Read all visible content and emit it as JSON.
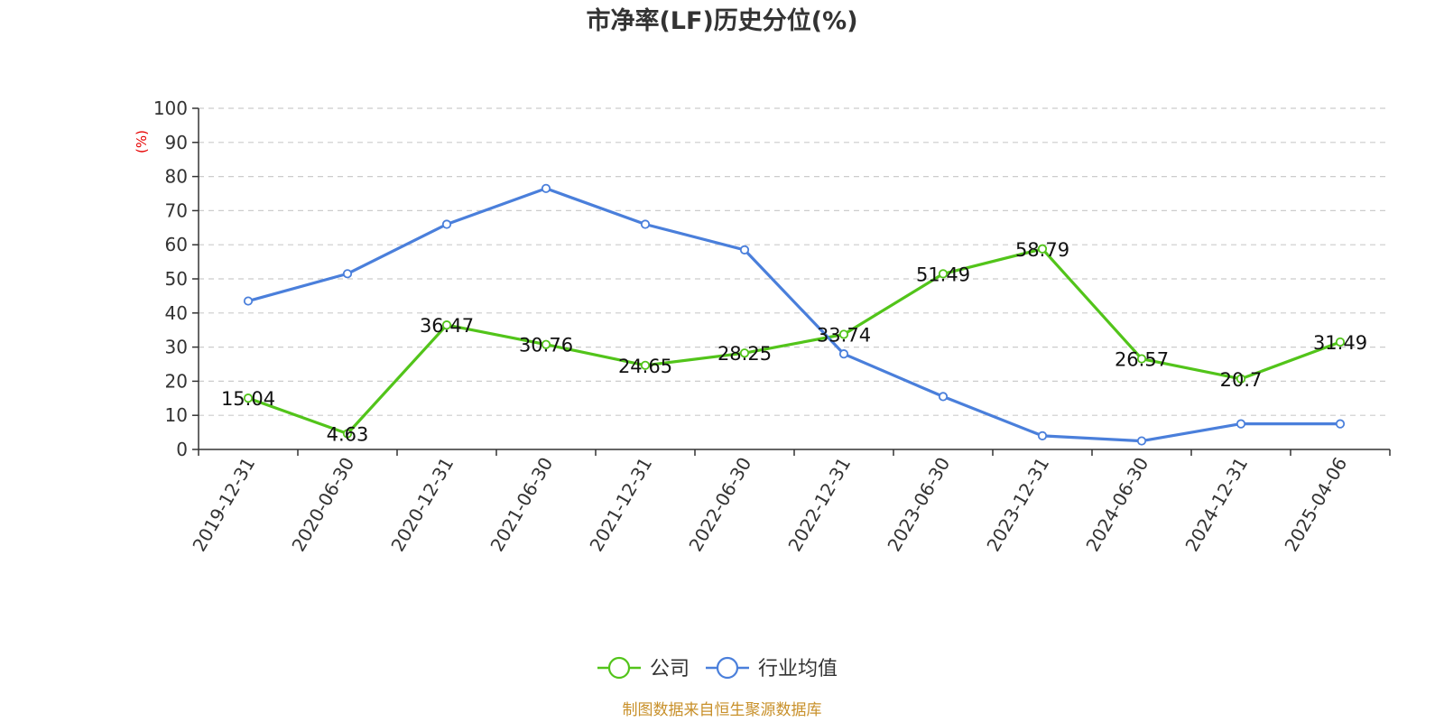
{
  "title": "市净率(LF)历史分位(%)",
  "source": "制图数据来自恒生聚源数据库",
  "chart_data": {
    "type": "line",
    "title": "市净率(LF)历史分位(%)",
    "ylabel": "(%)",
    "xlabel": "",
    "ylim": [
      0,
      100
    ],
    "yticks": [
      0,
      10,
      20,
      30,
      40,
      50,
      60,
      70,
      80,
      90,
      100
    ],
    "grid": true,
    "legend_position": "bottom",
    "categories": [
      "2019-12-31",
      "2020-06-30",
      "2020-12-31",
      "2021-06-30",
      "2021-12-31",
      "2022-06-30",
      "2022-12-31",
      "2023-06-30",
      "2023-12-31",
      "2024-06-30",
      "2024-12-31",
      "2025-04-06"
    ],
    "series": [
      {
        "name": "公司",
        "color": "#52c41a",
        "show_labels": true,
        "values": [
          15.04,
          4.63,
          36.47,
          30.76,
          24.65,
          28.25,
          33.74,
          51.49,
          58.79,
          26.57,
          20.7,
          31.49
        ]
      },
      {
        "name": "行业均值",
        "color": "#4a7fdb",
        "show_labels": false,
        "values": [
          43.5,
          51.5,
          66.0,
          76.5,
          66.0,
          58.5,
          28.0,
          15.5,
          4.0,
          2.5,
          7.5,
          7.5
        ]
      }
    ]
  }
}
